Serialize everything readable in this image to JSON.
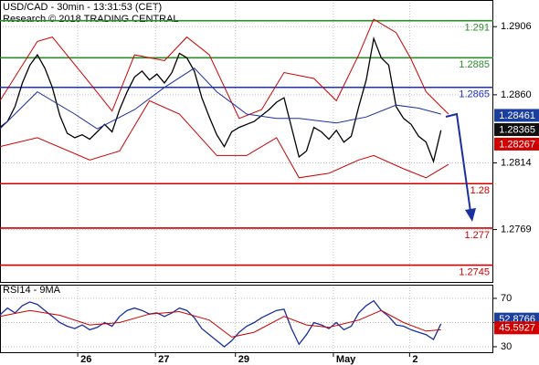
{
  "chart_data": [
    {
      "type": "line",
      "title": "USD/CAD - 30min - 13:31:53 (CET)",
      "subtitle": "Research © 2018 TRADING CENTRAL",
      "xlim": [
        0,
        66
      ],
      "xticks": [
        {
          "value": 10.4,
          "label": "26"
        },
        {
          "value": 20.8,
          "label": "27"
        },
        {
          "value": 31.5,
          "label": "29"
        },
        {
          "value": 44.6,
          "label": "May"
        },
        {
          "value": 54.8,
          "label": "2"
        }
      ],
      "ylim": [
        1.2733,
        1.2924
      ],
      "yticks": [
        1.2906,
        {
          "value": 1.286,
          "label": "1.2860"
        },
        1.2814,
        1.2769
      ],
      "grid": true,
      "series": [
        {
          "color": "#000000",
          "x": [
            0,
            1,
            2,
            3,
            4,
            5,
            6,
            7,
            8,
            9,
            10,
            11,
            12,
            13,
            14,
            15,
            16,
            17,
            18,
            19,
            20,
            21,
            22,
            23,
            24,
            25,
            26,
            27,
            28,
            29,
            30,
            31,
            32,
            33,
            34,
            35,
            36,
            37,
            38,
            39,
            40,
            41,
            42,
            43,
            44,
            45,
            46,
            47,
            48,
            49,
            50,
            51,
            52,
            53,
            54,
            55,
            56,
            57,
            58,
            59
          ],
          "values": [
            1.2838,
            1.2842,
            1.2852,
            1.2868,
            1.288,
            1.2887,
            1.2878,
            1.2865,
            1.2846,
            1.2834,
            1.2831,
            1.2833,
            1.283,
            1.2835,
            1.284,
            1.2835,
            1.285,
            1.2862,
            1.2872,
            1.2876,
            1.287,
            1.2874,
            1.2868,
            1.2875,
            1.2888,
            1.2885,
            1.2876,
            1.2858,
            1.2845,
            1.2833,
            1.2825,
            1.2835,
            1.2838,
            1.284,
            1.2842,
            1.2846,
            1.285,
            1.2855,
            1.2858,
            1.2838,
            1.2818,
            1.2822,
            1.2838,
            1.2835,
            1.283,
            1.2836,
            1.2828,
            1.2832,
            1.2852,
            1.287,
            1.2898,
            1.2885,
            1.288,
            1.2852,
            1.2844,
            1.284,
            1.2832,
            1.2828,
            1.2815,
            1.2836
          ]
        },
        {
          "color": "#cc0000",
          "x": [
            0,
            5,
            7,
            12,
            15,
            18,
            22,
            25,
            28,
            32,
            35,
            38,
            42,
            45,
            48,
            50,
            53,
            55,
            57,
            60
          ],
          "values": [
            1.2856,
            1.2896,
            1.2899,
            1.2868,
            1.2849,
            1.2887,
            1.2883,
            1.2899,
            1.2887,
            1.2844,
            1.285,
            1.2875,
            1.2871,
            1.2856,
            1.2887,
            1.2911,
            1.2902,
            1.2884,
            1.2862,
            1.2847
          ]
        },
        {
          "color": "#cc0000",
          "x": [
            0,
            5,
            12,
            16,
            20,
            24,
            29,
            33,
            37,
            40,
            44,
            48,
            50,
            54,
            57,
            60
          ],
          "values": [
            1.2825,
            1.2831,
            1.2816,
            1.2822,
            1.2856,
            1.2847,
            1.2819,
            1.2819,
            1.2831,
            1.2804,
            1.2807,
            1.2816,
            1.2819,
            1.281,
            1.2804,
            1.2813
          ]
        },
        {
          "color": "#1a2fa0",
          "x": [
            0,
            5,
            10,
            13,
            18,
            22,
            26,
            29,
            33,
            37,
            40,
            45,
            49,
            53,
            56,
            59
          ],
          "values": [
            1.2837,
            1.2862,
            1.2847,
            1.2837,
            1.285,
            1.2865,
            1.2878,
            1.2862,
            1.2847,
            1.2844,
            1.2844,
            1.2841,
            1.2845,
            1.2853,
            1.2851,
            1.2847
          ]
        }
      ],
      "levels": [
        {
          "value": 1.291,
          "color": "#2e8b2e"
        },
        {
          "value": 1.2885,
          "color": "#2e8b2e"
        },
        {
          "value": 1.2865,
          "color": "#1a2fd0"
        },
        {
          "value": 1.28,
          "color": "#d00000"
        },
        {
          "value": 1.277,
          "color": "#d00000"
        },
        {
          "value": 1.2745,
          "color": "#d00000"
        }
      ],
      "price_tags": [
        {
          "value": 1.28461,
          "color": "#1a3fa0"
        },
        {
          "value": 1.28365,
          "color": "#111111"
        },
        {
          "value": 1.28267,
          "color": "#d00000"
        }
      ]
    },
    {
      "type": "line",
      "title": "RSI14 - 9MA",
      "ylim": [
        24.7,
        81.3
      ],
      "yticks": [
        70,
        50,
        30
      ],
      "series": [
        {
          "color": "#1a2fa0",
          "x": [
            0,
            1,
            2,
            3,
            4,
            5,
            6,
            7,
            8,
            9,
            10,
            11,
            12,
            13,
            14,
            15,
            16,
            17,
            18,
            19,
            20,
            21,
            22,
            23,
            24,
            25,
            26,
            27,
            28,
            29,
            30,
            31,
            32,
            33,
            34,
            35,
            36,
            37,
            38,
            39,
            40,
            41,
            42,
            43,
            44,
            45,
            46,
            47,
            48,
            49,
            50,
            51,
            52,
            53,
            54,
            55,
            56,
            57,
            58,
            59
          ],
          "values": [
            56.4,
            62,
            58,
            64,
            67,
            65,
            60,
            55,
            50,
            47,
            45,
            48,
            44,
            46,
            50,
            47,
            55,
            60,
            62,
            60,
            57,
            58,
            55,
            58,
            62,
            60,
            54,
            45,
            40,
            35,
            30,
            35,
            42,
            47,
            50,
            54,
            57,
            60,
            61,
            45,
            32,
            40,
            50,
            48,
            45,
            50,
            44,
            47,
            58,
            64,
            68,
            60,
            55,
            48,
            47,
            44,
            42,
            40,
            36,
            49
          ]
        },
        {
          "color": "#cc0000",
          "x": [
            0,
            4,
            8,
            12,
            16,
            20,
            24,
            28,
            31,
            34,
            38,
            41,
            44,
            48,
            51,
            54,
            57,
            59
          ],
          "values": [
            55,
            60,
            56,
            48,
            50,
            57,
            59,
            52,
            38,
            42,
            55,
            48,
            46,
            52,
            60,
            50,
            43,
            44
          ]
        }
      ],
      "price_tags": [
        {
          "value": 52.8766,
          "color": "#1a3fa0"
        },
        {
          "value": 45.5927,
          "color": "#d00000"
        }
      ]
    }
  ]
}
